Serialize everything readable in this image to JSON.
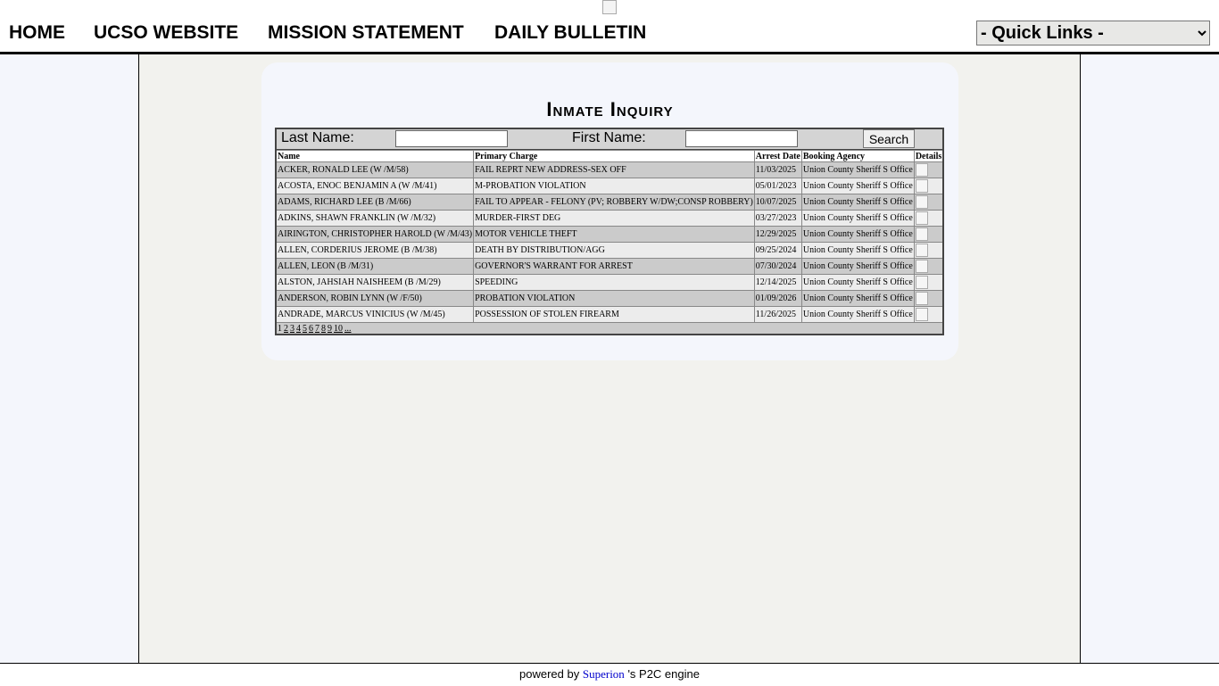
{
  "nav": {
    "links": [
      "HOME",
      "UCSO WEBSITE",
      "MISSION STATEMENT",
      "DAILY BULLETIN"
    ],
    "quick_links": "- Quick Links -"
  },
  "panel": {
    "title": "Inmate Inquiry",
    "search": {
      "last_name_label": "Last Name:",
      "first_name_label": "First Name:",
      "button": "Search"
    },
    "table": {
      "headers": [
        "Name",
        "Primary Charge",
        "Arrest Date",
        "Booking Agency",
        "Details"
      ],
      "rows": [
        [
          "ACKER, RONALD LEE (W /M/58)",
          "FAIL REPRT NEW ADDRESS-SEX OFF",
          "11/03/2025",
          "Union County Sheriff S Office"
        ],
        [
          "ACOSTA, ENOC BENJAMIN A (W /M/41)",
          "M-PROBATION VIOLATION",
          "05/01/2023",
          "Union County Sheriff S Office"
        ],
        [
          "ADAMS, RICHARD LEE (B /M/66)",
          "FAIL TO APPEAR - FELONY (PV; ROBBERY W/DW;CONSP ROBBERY)",
          "10/07/2025",
          "Union County Sheriff S Office"
        ],
        [
          "ADKINS, SHAWN FRANKLIN (W /M/32)",
          "MURDER-FIRST DEG",
          "03/27/2023",
          "Union County Sheriff S Office"
        ],
        [
          "AIRINGTON, CHRISTOPHER HAROLD (W /M/43)",
          "MOTOR VEHICLE THEFT",
          "12/29/2025",
          "Union County Sheriff S Office"
        ],
        [
          "ALLEN, CORDERIUS JEROME (B /M/38)",
          "DEATH BY DISTRIBUTION/AGG",
          "09/25/2024",
          "Union County Sheriff S Office"
        ],
        [
          "ALLEN, LEON (B /M/31)",
          "GOVERNOR'S WARRANT FOR ARREST",
          "07/30/2024",
          "Union County Sheriff S Office"
        ],
        [
          "ALSTON, JAHSIAH NAISHEEM (B /M/29)",
          "SPEEDING",
          "12/14/2025",
          "Union County Sheriff S Office"
        ],
        [
          "ANDERSON, ROBIN LYNN (W /F/50)",
          "PROBATION VIOLATION",
          "01/09/2026",
          "Union County Sheriff S Office"
        ],
        [
          "ANDRADE, MARCUS VINICIUS (W /M/45)",
          "POSSESSION OF STOLEN FIREARM",
          "11/26/2025",
          "Union County Sheriff S Office"
        ]
      ],
      "pager": [
        "1",
        "2",
        "3",
        "4",
        "5",
        "6",
        "7",
        "8",
        "9",
        "10",
        "..."
      ]
    }
  },
  "footer": {
    "prefix": "powered by",
    "link": "Superion",
    "suffix": "'s P2C engine"
  }
}
